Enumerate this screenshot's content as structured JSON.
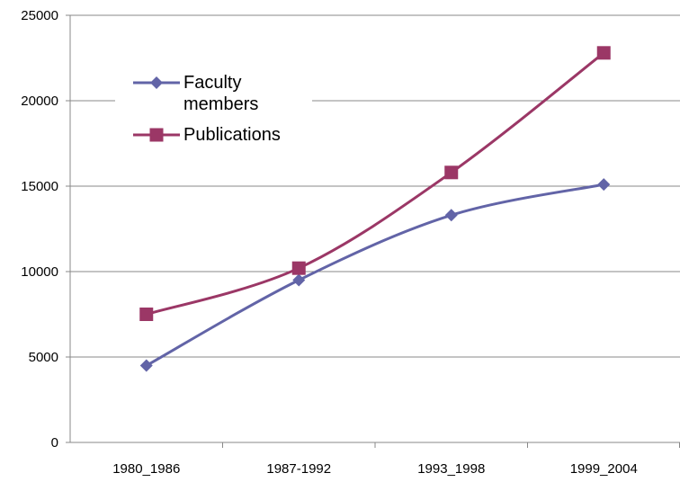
{
  "chart_data": {
    "type": "line",
    "categories": [
      "1980_1986",
      "1987-1992",
      "1993_1998",
      "1999_2004"
    ],
    "series": [
      {
        "name": "Faculty members",
        "color": "#6264a7",
        "marker": "diamond",
        "values": [
          4500,
          9500,
          13300,
          15100
        ]
      },
      {
        "name": "Publications",
        "color": "#9b3766",
        "marker": "square",
        "values": [
          7500,
          10200,
          15800,
          22800
        ]
      }
    ],
    "ylim": [
      0,
      25000
    ],
    "yticks": [
      0,
      5000,
      10000,
      15000,
      20000,
      25000
    ],
    "grid": true,
    "smooth": true,
    "legend": "upper left"
  }
}
